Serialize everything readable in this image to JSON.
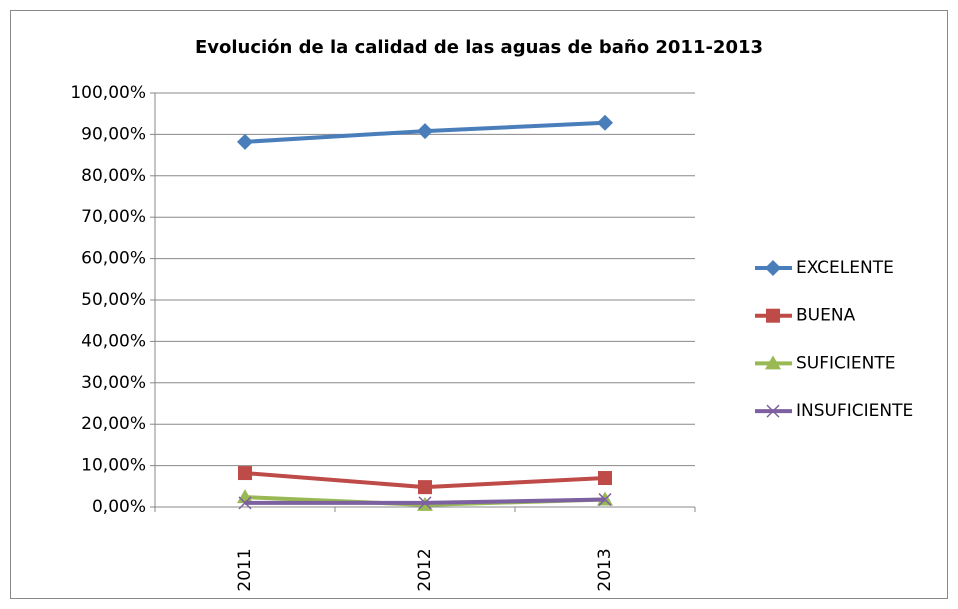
{
  "chart_data": {
    "type": "line",
    "title": "Evolución de la calidad de las aguas de baño 2011-2013",
    "categories": [
      "2011",
      "2012",
      "2013"
    ],
    "series": [
      {
        "name": "EXCELENTE",
        "color": "#4a7ebb",
        "marker": "diamond",
        "values": [
          88.2,
          90.8,
          92.8
        ]
      },
      {
        "name": "BUENA",
        "color": "#be4b48",
        "marker": "square",
        "values": [
          8.2,
          4.8,
          7.0
        ]
      },
      {
        "name": "SUFICIENTE",
        "color": "#98b954",
        "marker": "triangle",
        "values": [
          2.4,
          0.5,
          1.8
        ]
      },
      {
        "name": "INSUFICIENTE",
        "color": "#7d60a0",
        "marker": "x",
        "values": [
          1.0,
          1.0,
          1.8
        ]
      }
    ],
    "ylim": [
      0,
      100
    ],
    "yticks": [
      {
        "value": 0,
        "label": "0,00%"
      },
      {
        "value": 10,
        "label": "10,00%"
      },
      {
        "value": 20,
        "label": "20,00%"
      },
      {
        "value": 30,
        "label": "30,00%"
      },
      {
        "value": 40,
        "label": "40,00%"
      },
      {
        "value": 50,
        "label": "50,00%"
      },
      {
        "value": 60,
        "label": "60,00%"
      },
      {
        "value": 70,
        "label": "70,00%"
      },
      {
        "value": 80,
        "label": "80,00%"
      },
      {
        "value": 90,
        "label": "90,00%"
      },
      {
        "value": 100,
        "label": "100,00%"
      }
    ],
    "grid": true,
    "legend": "right"
  }
}
